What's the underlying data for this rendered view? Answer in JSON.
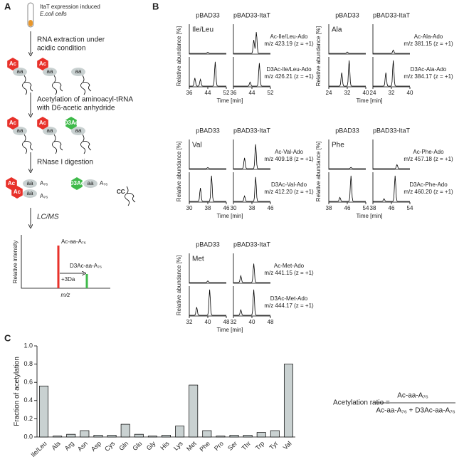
{
  "panel_a": {
    "label": "A",
    "tube_text": [
      "ItaT expression induced",
      "E.coli cells"
    ],
    "steps": [
      [
        "RNA extraction under",
        "acidic condition"
      ],
      [
        "Acetylation of aminoacyl-tRNA",
        "with D6-acetic anhydride"
      ],
      [
        "RNase I digestion"
      ],
      [
        "LC/MS"
      ]
    ],
    "ac": "Ac",
    "aa": "aa",
    "d3ac": "D3Ac",
    "a76": "A₇₆",
    "cc": "CC",
    "spectrum": {
      "y_label": "Relative intensity",
      "x_label": "m/z",
      "ac_peak": "Ac-aa-A₇₆",
      "shift": "+3Da",
      "d3_peak": "D3Ac-aa-A₇₆"
    }
  },
  "panel_b": {
    "label": "B",
    "control": "pBAD33",
    "itat": "pBAD33-ItaT",
    "y_label": "Relative abundance [%]",
    "x_label": "Time [min]",
    "panels": [
      {
        "name": "Ile/Leu",
        "ac": "Ac-Ile/Leu-Ado",
        "ac_mz": "m/z 423.19 (z = +1)",
        "d3": "D3Ac-Ile/Leu-Ado",
        "d3_mz": "m/z 426.21 (z = +1)",
        "xticks": [
          36,
          44,
          52
        ]
      },
      {
        "name": "Ala",
        "ac": "Ac-Ala-Ado",
        "ac_mz": "m/z 381.15 (z = +1)",
        "d3": "D3Ac-Ala-Ado",
        "d3_mz": "m/z 384.17 (z = +1)",
        "xticks": [
          24,
          32,
          40
        ]
      },
      {
        "name": "Val",
        "ac": "Ac-Val-Ado",
        "ac_mz": "m/z 409.18 (z = +1)",
        "d3": "D3Ac-Val-Ado",
        "d3_mz": "m/z 412.20 (z = +1)",
        "xticks": [
          30,
          38,
          46
        ]
      },
      {
        "name": "Phe",
        "ac": "Ac-Phe-Ado",
        "ac_mz": "m/z 457.18 (z = +1)",
        "d3": "D3Ac-Phe-Ado",
        "d3_mz": "m/z 460.20 (z = +1)",
        "xticks": [
          38,
          46,
          54
        ]
      },
      {
        "name": "Met",
        "ac": "Ac-Met-Ado",
        "ac_mz": "m/z 441.15 (z = +1)",
        "d3": "D3Ac-Met-Ado",
        "d3_mz": "m/z 444.17 (z = +1)",
        "xticks": [
          32,
          40,
          48
        ]
      }
    ]
  },
  "panel_c": {
    "label": "C",
    "equation": {
      "lhs": "Acetylation ratio =",
      "numerator": "Ac-aa-A₇₆",
      "denominator": "Ac-aa-A₇₆ + D3Ac-aa-A₇₆"
    }
  },
  "chart_data": {
    "type": "bar",
    "y_label": "Fraction of acetylation",
    "color": "#c9d1d1",
    "categories": [
      "Ile/Leu",
      "Ala",
      "Arg",
      "Asn",
      "Asp",
      "Cys",
      "Gln",
      "Glu",
      "Gly",
      "His",
      "Lys",
      "Met",
      "Phe",
      "Pro",
      "Ser",
      "Thr",
      "Trp",
      "Tyr",
      "Val"
    ],
    "values": [
      0.56,
      0.01,
      0.03,
      0.07,
      0.02,
      0.02,
      0.14,
      0.03,
      0.01,
      0.02,
      0.12,
      0.57,
      0.07,
      0.01,
      0.02,
      0.02,
      0.05,
      0.07,
      0.8
    ],
    "ylim": [
      0,
      1.0
    ],
    "yticks": [
      {
        "value": 0,
        "label": "0.0"
      },
      0.2,
      0.4,
      0.6,
      0.8,
      {
        "value": 1.0,
        "label": "1.0"
      }
    ]
  }
}
